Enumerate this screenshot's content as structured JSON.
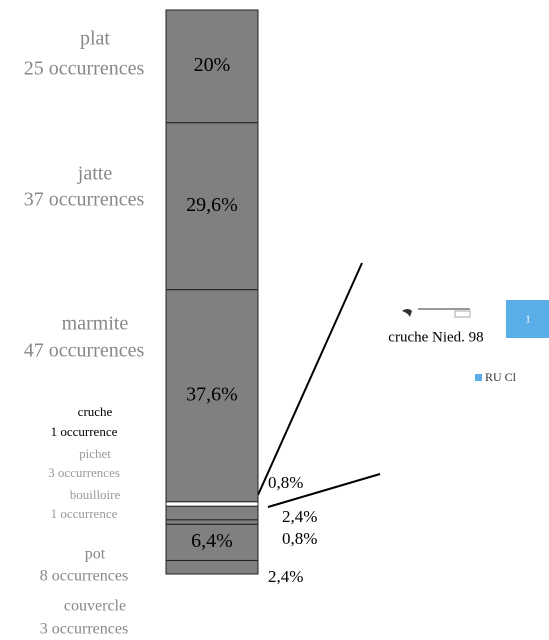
{
  "chart_data": {
    "type": "stacked-column",
    "categories": [
      "plat",
      "jatte",
      "marmite",
      "cruche",
      "pichet",
      "bouilloire",
      "pot",
      "couvercle"
    ],
    "occurrences": [
      "25 occurrences",
      "37 occurrences",
      "47 occurrences",
      "1 occurrence",
      "3 occurrences",
      "1 occurrence",
      "8 occurrences",
      "3 occurrences"
    ],
    "values": [
      20,
      29.6,
      37.6,
      0.8,
      2.4,
      0.8,
      6.4,
      2.4
    ],
    "value_labels": [
      "20%",
      "29,6%",
      "37,6%",
      "0,8%",
      "2,4%",
      "0,8%",
      "6,4%",
      "2,4%"
    ],
    "colors": [
      "#808080",
      "#808080",
      "#808080",
      "#ffffff",
      "#808080",
      "#808080",
      "#808080",
      "#808080"
    ],
    "annotation": "cruche Nied. 98",
    "badge": "1",
    "legend": {
      "name": "RU Cl",
      "color": "#5aaee8"
    }
  }
}
